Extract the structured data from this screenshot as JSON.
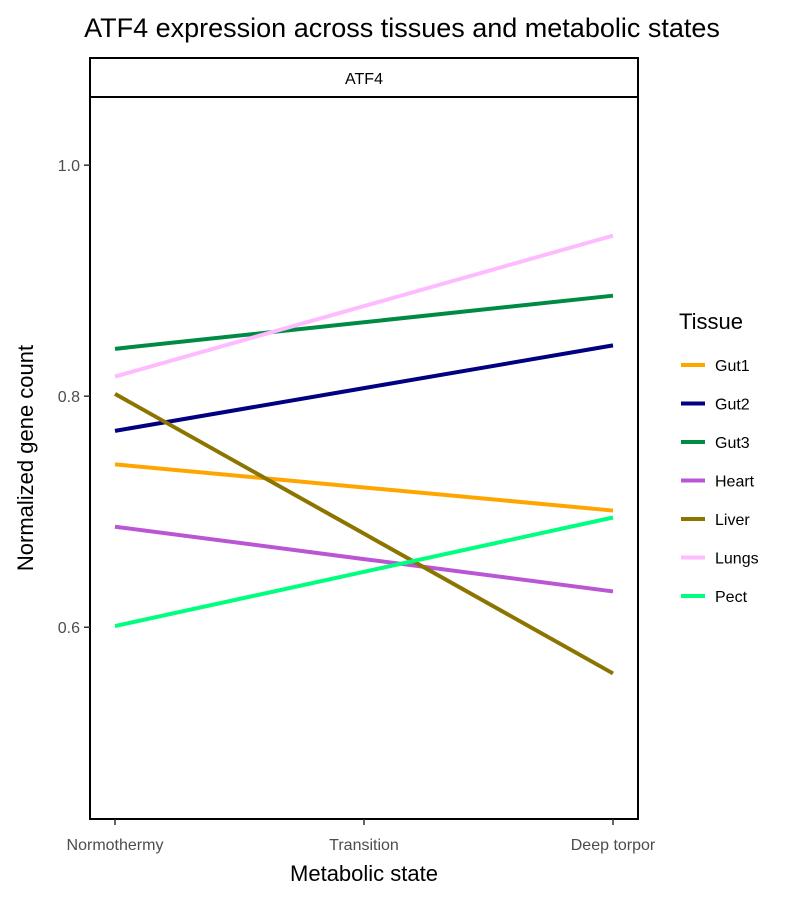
{
  "chart_data": {
    "type": "line",
    "title": "ATF4 expression across tissues and metabolic states",
    "facet_label": "ATF4",
    "xlabel": "Metabolic state",
    "ylabel": "Normalized gene count",
    "categories": [
      "Normothermy",
      "Transition",
      "Deep torpor"
    ],
    "y_ticks": [
      0.6,
      0.8,
      1.0
    ],
    "y_tick_labels": [
      "0.6",
      "0.8",
      "1.0"
    ],
    "ylim": [
      0.434,
      1.059
    ],
    "grid": false,
    "legend": {
      "title": "Tissue",
      "placement": "right"
    },
    "series": [
      {
        "name": "Gut1",
        "color": "#FFA500",
        "values": [
          0.741,
          0.721,
          0.701
        ]
      },
      {
        "name": "Gut2",
        "color": "#000080",
        "values": [
          0.77,
          0.807,
          0.844
        ]
      },
      {
        "name": "Gut3",
        "color": "#008B45",
        "values": [
          0.841,
          0.864,
          0.887
        ]
      },
      {
        "name": "Heart",
        "color": "#BA55D3",
        "values": [
          0.687,
          0.659,
          0.631
        ]
      },
      {
        "name": "Liver",
        "color": "#8B7500",
        "values": [
          0.802,
          0.681,
          0.56
        ]
      },
      {
        "name": "Lungs",
        "color": "#FFBBFF",
        "values": [
          0.817,
          0.878,
          0.939
        ]
      },
      {
        "name": "Pect",
        "color": "#00FF7F",
        "values": [
          0.601,
          0.648,
          0.695
        ]
      }
    ]
  }
}
